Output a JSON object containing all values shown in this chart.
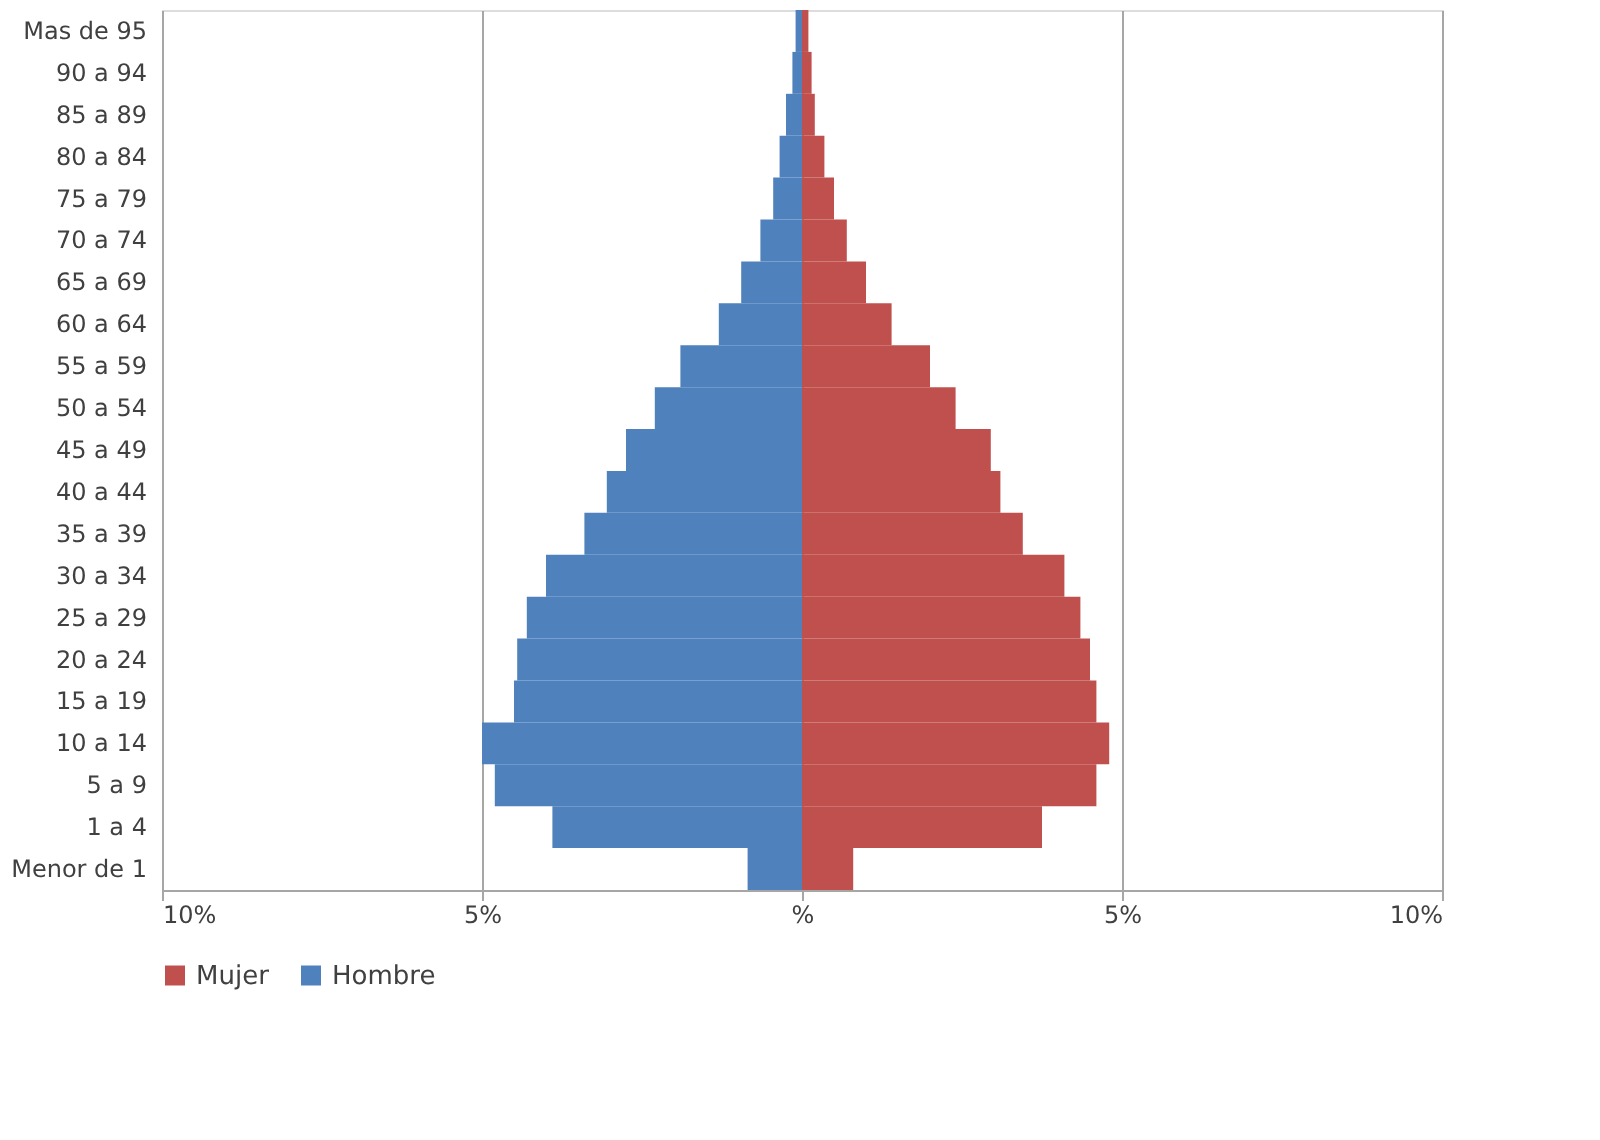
{
  "chart_data": {
    "type": "bar",
    "orientation": "horizontal",
    "stacked": true,
    "categories": [
      "Mas de 95",
      "90 a 94",
      "85 a 89",
      "80 a 84",
      "75 a 79",
      "70 a 74",
      "65 a 69",
      "60 a 64",
      "55 a 59",
      "50 a 54",
      "45 a 49",
      "40 a 44",
      "35 a 39",
      "30 a 34",
      "25 a 29",
      "20 a 24",
      "15 a 19",
      "10 a 14",
      "5 a 9",
      "1 a 4",
      "Menor de 1"
    ],
    "series": [
      {
        "name": "Mujer",
        "color": "#c0504d",
        "values": [
          0.1,
          0.15,
          0.2,
          0.35,
          0.5,
          0.7,
          1.0,
          1.4,
          2.0,
          2.4,
          2.95,
          3.1,
          3.45,
          4.1,
          4.35,
          4.5,
          4.6,
          4.8,
          4.6,
          3.75,
          0.8
        ]
      },
      {
        "name": "Hombre",
        "color": "#4f81bd",
        "values": [
          -0.1,
          -0.15,
          -0.25,
          -0.35,
          -0.45,
          -0.65,
          -0.95,
          -1.3,
          -1.9,
          -2.3,
          -2.75,
          -3.05,
          -3.4,
          -4.0,
          -4.3,
          -4.45,
          -4.5,
          -5.0,
          -4.8,
          -3.9,
          -0.85
        ]
      }
    ],
    "xlim": [
      -10,
      10
    ],
    "xticks": [
      {
        "value": -10,
        "label": "10%"
      },
      {
        "value": -5,
        "label": "5%"
      },
      {
        "value": 0,
        "label": "%"
      },
      {
        "value": 5,
        "label": "5%"
      },
      {
        "value": 10,
        "label": "10%"
      }
    ],
    "grid": "x",
    "legend": "bottom"
  }
}
